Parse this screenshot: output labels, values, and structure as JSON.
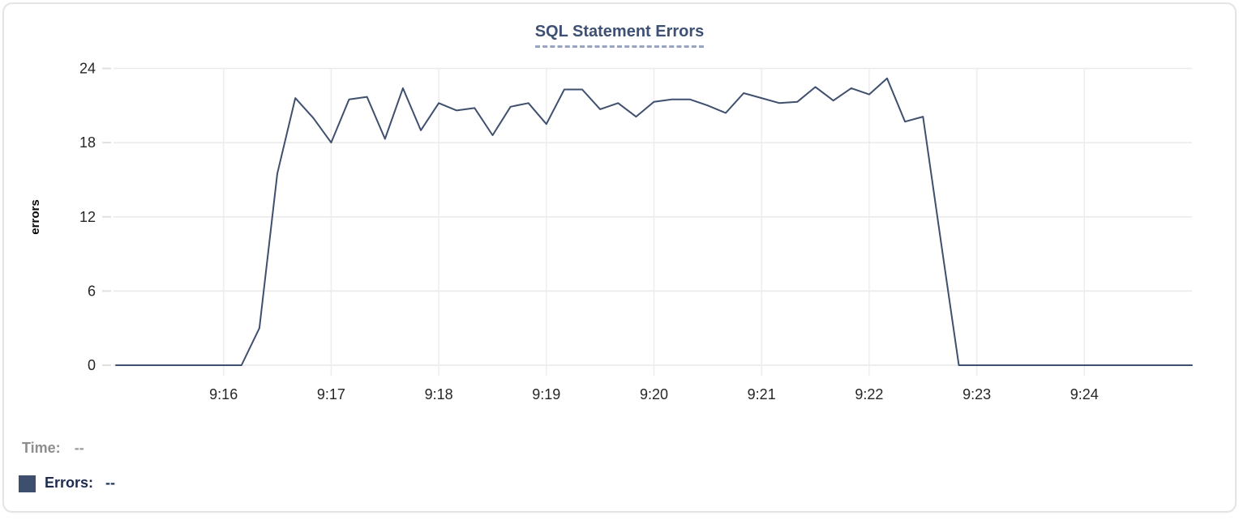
{
  "legend": {
    "time_label": "Time:",
    "time_value": "--",
    "errors_label": "Errors:",
    "errors_value": "--",
    "swatch_color": "#3e4e6d"
  },
  "colors": {
    "line": "#3f4f6e",
    "title": "#3e5073",
    "title_underline": "#99a4c0",
    "grid": "#e9e9e9",
    "tick_text": "#262626",
    "card_border": "#e4e4e6"
  },
  "chart_data": {
    "type": "line",
    "title": "SQL Statement Errors",
    "xlabel": "",
    "ylabel": "errors",
    "ylim": [
      0,
      24
    ],
    "y_ticks": [
      0,
      6,
      12,
      18,
      24
    ],
    "x_ticks": [
      "9:16",
      "9:17",
      "9:18",
      "9:19",
      "9:20",
      "9:21",
      "9:22",
      "9:23",
      "9:24"
    ],
    "x_domain": [
      "9:15:00",
      "9:25:00"
    ],
    "grid": "on",
    "legend_position": "bottom-left",
    "series": [
      {
        "name": "Errors",
        "color": "#3f4f6e",
        "points": [
          [
            "9:15:00",
            0
          ],
          [
            "9:15:10",
            0
          ],
          [
            "9:15:20",
            0
          ],
          [
            "9:15:30",
            0
          ],
          [
            "9:15:40",
            0
          ],
          [
            "9:15:50",
            0
          ],
          [
            "9:16:00",
            0
          ],
          [
            "9:16:10",
            0
          ],
          [
            "9:16:20",
            3
          ],
          [
            "9:16:30",
            15.5
          ],
          [
            "9:16:40",
            21.6
          ],
          [
            "9:16:50",
            20
          ],
          [
            "9:17:00",
            18
          ],
          [
            "9:17:10",
            21.5
          ],
          [
            "9:17:20",
            21.7
          ],
          [
            "9:17:30",
            18.3
          ],
          [
            "9:17:40",
            22.4
          ],
          [
            "9:17:50",
            19
          ],
          [
            "9:18:00",
            21.2
          ],
          [
            "9:18:10",
            20.6
          ],
          [
            "9:18:20",
            20.8
          ],
          [
            "9:18:30",
            18.6
          ],
          [
            "9:18:40",
            20.9
          ],
          [
            "9:18:50",
            21.2
          ],
          [
            "9:19:00",
            19.5
          ],
          [
            "9:19:10",
            22.3
          ],
          [
            "9:19:20",
            22.3
          ],
          [
            "9:19:30",
            20.7
          ],
          [
            "9:19:40",
            21.2
          ],
          [
            "9:19:50",
            20.1
          ],
          [
            "9:20:00",
            21.3
          ],
          [
            "9:20:10",
            21.5
          ],
          [
            "9:20:20",
            21.5
          ],
          [
            "9:20:30",
            21
          ],
          [
            "9:20:40",
            20.4
          ],
          [
            "9:20:50",
            22
          ],
          [
            "9:21:00",
            21.6
          ],
          [
            "9:21:10",
            21.2
          ],
          [
            "9:21:20",
            21.3
          ],
          [
            "9:21:30",
            22.5
          ],
          [
            "9:21:40",
            21.4
          ],
          [
            "9:21:50",
            22.4
          ],
          [
            "9:22:00",
            21.9
          ],
          [
            "9:22:10",
            23.2
          ],
          [
            "9:22:20",
            19.7
          ],
          [
            "9:22:30",
            20.1
          ],
          [
            "9:22:40",
            10
          ],
          [
            "9:22:50",
            0
          ],
          [
            "9:23:00",
            0
          ],
          [
            "9:23:10",
            0
          ],
          [
            "9:23:20",
            0
          ],
          [
            "9:23:30",
            0
          ],
          [
            "9:23:40",
            0
          ],
          [
            "9:23:50",
            0
          ],
          [
            "9:24:00",
            0
          ],
          [
            "9:24:10",
            0
          ],
          [
            "9:24:20",
            0
          ],
          [
            "9:24:30",
            0
          ],
          [
            "9:24:40",
            0
          ],
          [
            "9:24:50",
            0
          ],
          [
            "9:25:00",
            0
          ]
        ]
      }
    ]
  }
}
